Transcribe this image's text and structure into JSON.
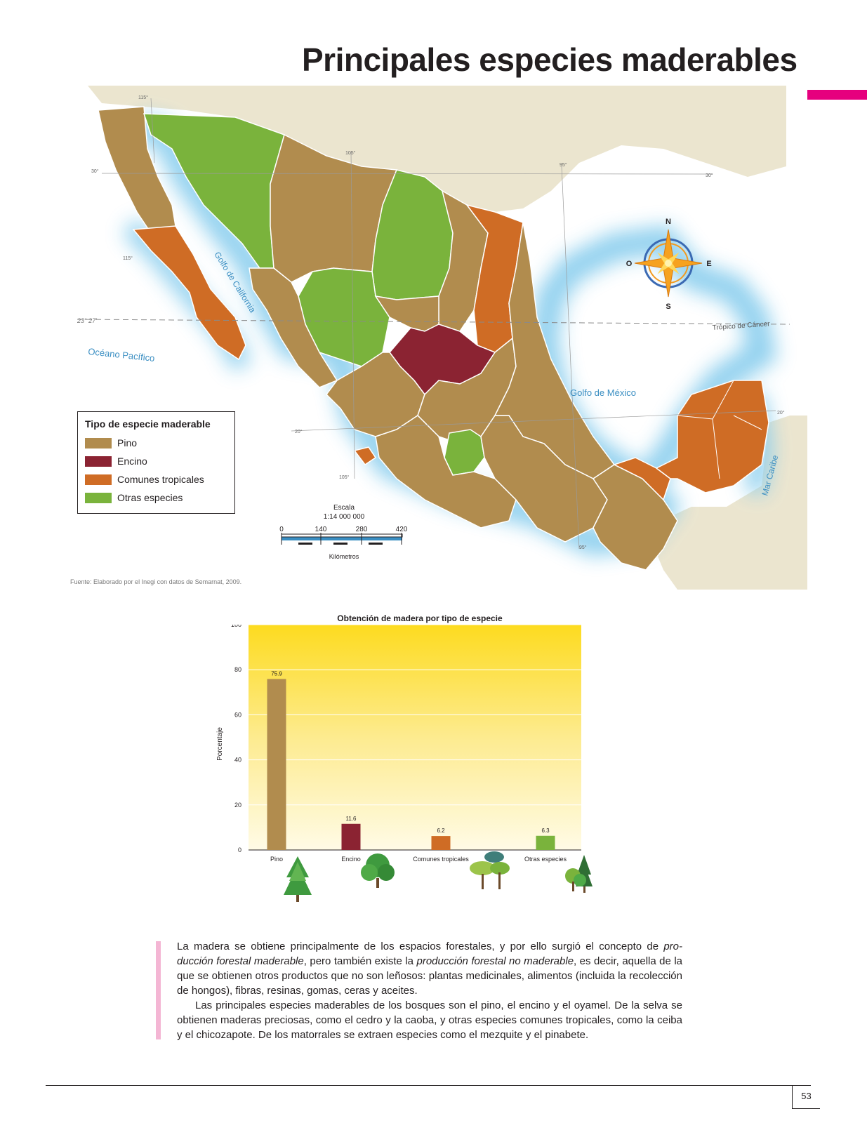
{
  "page": {
    "title": "Principales especies maderables",
    "accent_color": "#e6007e",
    "page_number": "53"
  },
  "map": {
    "coords": {
      "lon_115_top": "115°",
      "lon_105_top": "105°",
      "lon_95_top": "95°",
      "lat_30_left": "30°",
      "lat_30_right": "30°",
      "lon_115_mid": "115°",
      "lat_tropic": "23° 27'",
      "lat_20_left": "20°",
      "lat_20_right": "20°",
      "lon_105_bottom": "105°",
      "lon_95_bottom": "95°"
    },
    "water_labels": {
      "pacific": "Océano Pacífico",
      "gulf_california": "Golfo de California",
      "gulf_mexico": "Golfo de México",
      "caribbean": "Mar Caribe"
    },
    "tropic_label": "Trópico de Cáncer",
    "compass": {
      "n": "N",
      "s": "S",
      "e": "E",
      "w": "O",
      "icon": "compass-rose-icon"
    },
    "scale": {
      "title": "Escala",
      "ratio": "1:14 000 000",
      "ticks": [
        "0",
        "140",
        "280",
        "420"
      ],
      "unit": "Kilómetros"
    },
    "source": "Fuente: Elaborado por el Inegi con datos de Semarnat, 2009.",
    "colors": {
      "pino": "#b18c4e",
      "encino": "#8b2332",
      "tropicales": "#cf6c25",
      "otras": "#7ab33c",
      "land": "#ebe5cf",
      "water": "#9ad3ee"
    }
  },
  "legend": {
    "title": "Tipo de especie maderable",
    "items": [
      {
        "label": "Pino",
        "color": "#b18c4e"
      },
      {
        "label": "Encino",
        "color": "#8b2332"
      },
      {
        "label": "Comunes tropicales",
        "color": "#cf6c25"
      },
      {
        "label": "Otras especies",
        "color": "#7ab33c"
      }
    ]
  },
  "chart_data": {
    "type": "bar",
    "title": "Obtención de madera por tipo de especie",
    "ylabel": "Porcentaje",
    "xlabel": "",
    "ylim": [
      0,
      100
    ],
    "yticks": [
      0,
      20,
      40,
      60,
      80,
      100
    ],
    "categories": [
      "Pino",
      "Encino",
      "Comunes tropicales",
      "Otras especies"
    ],
    "values": [
      75.9,
      11.6,
      6.2,
      6.3
    ],
    "value_labels": [
      "75.9",
      "11.6",
      "6.2",
      "6.3"
    ],
    "colors": [
      "#b18c4e",
      "#8b2332",
      "#cf6c25",
      "#7ab33c"
    ],
    "grid": true,
    "icons": [
      "pine-tree-icon",
      "oak-tree-icon",
      "tropical-trees-icon",
      "mixed-trees-icon"
    ]
  },
  "body": {
    "p1_a": "La madera se obtiene principalmente de los espacios forestales, y por ello surgió el concepto de ",
    "p1_em1": "pro-ducción forestal maderable",
    "p1_b": ", pero también existe la ",
    "p1_em2": "producción forestal no maderable",
    "p1_c": ", es decir, aquella de la que se obtienen otros productos que no son leñosos: plantas medicinales, alimentos (incluida la recolección de hongos), fibras, resinas, gomas, ceras y aceites.",
    "p2": "Las principales especies maderables de los bosques son el pino, el encino y el oyamel. De la selva se obtienen maderas preciosas, como el cedro y la caoba, y otras especies comunes tropicales, como la ceiba y el chicozapote. De los matorrales se extraen especies como el mezquite y el pinabete."
  }
}
